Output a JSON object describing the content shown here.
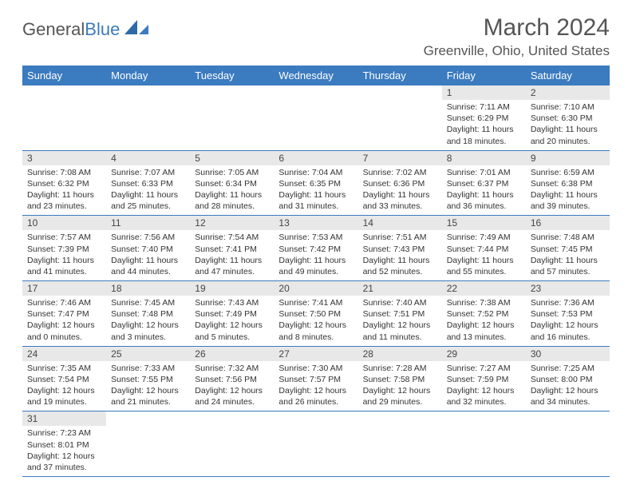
{
  "brand": {
    "part1": "General",
    "part2": "Blue"
  },
  "title": "March 2024",
  "location": "Greenville, Ohio, United States",
  "colors": {
    "header_bg": "#3b7bbf",
    "header_text": "#ffffff",
    "daynum_bg": "#e8e8e8",
    "text": "#333333",
    "title_text": "#555555",
    "row_border": "#3b7bbf",
    "background": "#ffffff"
  },
  "fonts": {
    "title_size_pt": 22,
    "location_size_pt": 13,
    "weekday_size_pt": 10,
    "daynum_size_pt": 9,
    "body_size_pt": 8
  },
  "weekdays": [
    "Sunday",
    "Monday",
    "Tuesday",
    "Wednesday",
    "Thursday",
    "Friday",
    "Saturday"
  ],
  "weeks": [
    [
      null,
      null,
      null,
      null,
      null,
      {
        "n": "1",
        "sunrise": "7:11 AM",
        "sunset": "6:29 PM",
        "dl_h": 11,
        "dl_m": 18
      },
      {
        "n": "2",
        "sunrise": "7:10 AM",
        "sunset": "6:30 PM",
        "dl_h": 11,
        "dl_m": 20
      }
    ],
    [
      {
        "n": "3",
        "sunrise": "7:08 AM",
        "sunset": "6:32 PM",
        "dl_h": 11,
        "dl_m": 23
      },
      {
        "n": "4",
        "sunrise": "7:07 AM",
        "sunset": "6:33 PM",
        "dl_h": 11,
        "dl_m": 25
      },
      {
        "n": "5",
        "sunrise": "7:05 AM",
        "sunset": "6:34 PM",
        "dl_h": 11,
        "dl_m": 28
      },
      {
        "n": "6",
        "sunrise": "7:04 AM",
        "sunset": "6:35 PM",
        "dl_h": 11,
        "dl_m": 31
      },
      {
        "n": "7",
        "sunrise": "7:02 AM",
        "sunset": "6:36 PM",
        "dl_h": 11,
        "dl_m": 33
      },
      {
        "n": "8",
        "sunrise": "7:01 AM",
        "sunset": "6:37 PM",
        "dl_h": 11,
        "dl_m": 36
      },
      {
        "n": "9",
        "sunrise": "6:59 AM",
        "sunset": "6:38 PM",
        "dl_h": 11,
        "dl_m": 39
      }
    ],
    [
      {
        "n": "10",
        "sunrise": "7:57 AM",
        "sunset": "7:39 PM",
        "dl_h": 11,
        "dl_m": 41
      },
      {
        "n": "11",
        "sunrise": "7:56 AM",
        "sunset": "7:40 PM",
        "dl_h": 11,
        "dl_m": 44
      },
      {
        "n": "12",
        "sunrise": "7:54 AM",
        "sunset": "7:41 PM",
        "dl_h": 11,
        "dl_m": 47
      },
      {
        "n": "13",
        "sunrise": "7:53 AM",
        "sunset": "7:42 PM",
        "dl_h": 11,
        "dl_m": 49
      },
      {
        "n": "14",
        "sunrise": "7:51 AM",
        "sunset": "7:43 PM",
        "dl_h": 11,
        "dl_m": 52
      },
      {
        "n": "15",
        "sunrise": "7:49 AM",
        "sunset": "7:44 PM",
        "dl_h": 11,
        "dl_m": 55
      },
      {
        "n": "16",
        "sunrise": "7:48 AM",
        "sunset": "7:45 PM",
        "dl_h": 11,
        "dl_m": 57
      }
    ],
    [
      {
        "n": "17",
        "sunrise": "7:46 AM",
        "sunset": "7:47 PM",
        "dl_h": 12,
        "dl_m": 0
      },
      {
        "n": "18",
        "sunrise": "7:45 AM",
        "sunset": "7:48 PM",
        "dl_h": 12,
        "dl_m": 3
      },
      {
        "n": "19",
        "sunrise": "7:43 AM",
        "sunset": "7:49 PM",
        "dl_h": 12,
        "dl_m": 5
      },
      {
        "n": "20",
        "sunrise": "7:41 AM",
        "sunset": "7:50 PM",
        "dl_h": 12,
        "dl_m": 8
      },
      {
        "n": "21",
        "sunrise": "7:40 AM",
        "sunset": "7:51 PM",
        "dl_h": 12,
        "dl_m": 11
      },
      {
        "n": "22",
        "sunrise": "7:38 AM",
        "sunset": "7:52 PM",
        "dl_h": 12,
        "dl_m": 13
      },
      {
        "n": "23",
        "sunrise": "7:36 AM",
        "sunset": "7:53 PM",
        "dl_h": 12,
        "dl_m": 16
      }
    ],
    [
      {
        "n": "24",
        "sunrise": "7:35 AM",
        "sunset": "7:54 PM",
        "dl_h": 12,
        "dl_m": 19
      },
      {
        "n": "25",
        "sunrise": "7:33 AM",
        "sunset": "7:55 PM",
        "dl_h": 12,
        "dl_m": 21
      },
      {
        "n": "26",
        "sunrise": "7:32 AM",
        "sunset": "7:56 PM",
        "dl_h": 12,
        "dl_m": 24
      },
      {
        "n": "27",
        "sunrise": "7:30 AM",
        "sunset": "7:57 PM",
        "dl_h": 12,
        "dl_m": 26
      },
      {
        "n": "28",
        "sunrise": "7:28 AM",
        "sunset": "7:58 PM",
        "dl_h": 12,
        "dl_m": 29
      },
      {
        "n": "29",
        "sunrise": "7:27 AM",
        "sunset": "7:59 PM",
        "dl_h": 12,
        "dl_m": 32
      },
      {
        "n": "30",
        "sunrise": "7:25 AM",
        "sunset": "8:00 PM",
        "dl_h": 12,
        "dl_m": 34
      }
    ],
    [
      {
        "n": "31",
        "sunrise": "7:23 AM",
        "sunset": "8:01 PM",
        "dl_h": 12,
        "dl_m": 37
      },
      null,
      null,
      null,
      null,
      null,
      null
    ]
  ],
  "labels": {
    "sunrise": "Sunrise",
    "sunset": "Sunset",
    "daylight": "Daylight",
    "hours": "hours",
    "and": "and",
    "minutes": "minutes"
  }
}
